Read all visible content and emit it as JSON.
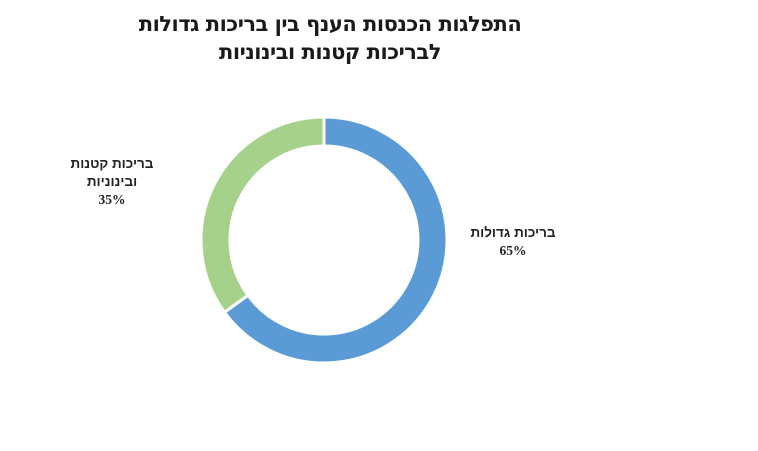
{
  "chart_data": {
    "type": "pie",
    "variant": "donut",
    "title": "התפלגות הכנסות הענף בין בריכות גדולות לבריכות קטנות ובינוניות",
    "title_lines": [
      "התפלגות הכנסות הענף בין בריכות גדולות",
      "לבריכות קטנות ובינוניות"
    ],
    "categories": [
      "בריכות גדולות",
      "בריכות קטנות ובינוניות"
    ],
    "values": [
      65,
      35
    ],
    "unit": "%",
    "colors": [
      "#5B9BD5",
      "#A5D18A"
    ],
    "data_labels": [
      {
        "name_lines": [
          "בריכות גדולות"
        ],
        "value_text": "65%"
      },
      {
        "name_lines": [
          "בריכות קטנות",
          "ובינוניות"
        ],
        "value_text": "35%"
      }
    ],
    "start_angle_deg": 0,
    "direction": "clockwise",
    "legend": "none"
  }
}
